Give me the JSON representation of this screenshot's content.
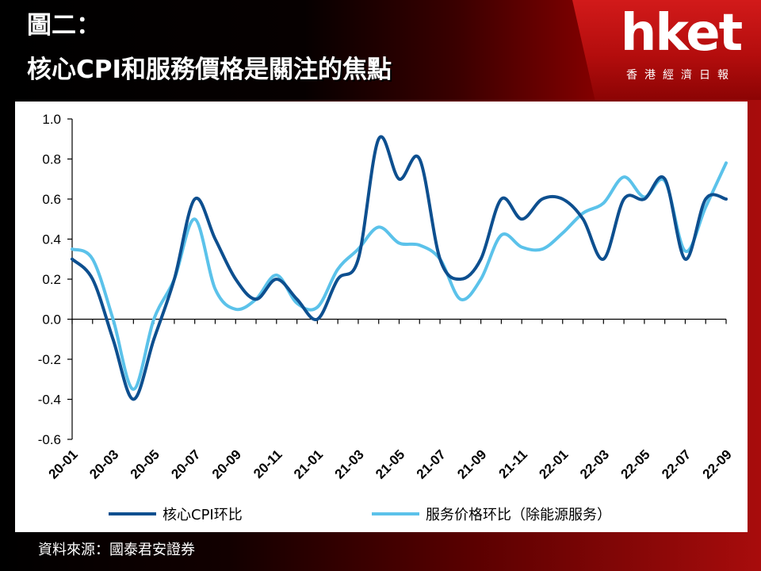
{
  "header": {
    "title_line1": "圖二：",
    "title_line2": "核心CPI和服務價格是關注的焦點",
    "logo": "hket",
    "logo_sub": "香港經濟日報"
  },
  "footer": {
    "source": "資料來源：國泰君安證券"
  },
  "colors": {
    "series1": "#0d4f8f",
    "series2": "#5bc2ea"
  },
  "chart_data": {
    "type": "line",
    "title": "",
    "xlabel": "",
    "ylabel": "",
    "ylim": [
      -0.6,
      1.0
    ],
    "yticks": [
      "1.0",
      "0.8",
      "0.6",
      "0.4",
      "0.2",
      "0.0",
      "-0.2",
      "-0.4",
      "-0.6"
    ],
    "x": [
      "20-01",
      "20-02",
      "20-03",
      "20-04",
      "20-05",
      "20-06",
      "20-07",
      "20-08",
      "20-09",
      "20-10",
      "20-11",
      "20-12",
      "21-01",
      "21-02",
      "21-03",
      "21-04",
      "21-05",
      "21-06",
      "21-07",
      "21-08",
      "21-09",
      "21-10",
      "21-11",
      "21-12",
      "22-01",
      "22-02",
      "22-03",
      "22-04",
      "22-05",
      "22-06",
      "22-07",
      "22-08",
      "22-09"
    ],
    "x_tick_labels": [
      "20-01",
      "20-03",
      "20-05",
      "20-07",
      "20-09",
      "20-11",
      "21-01",
      "21-03",
      "21-05",
      "21-07",
      "21-09",
      "21-11",
      "22-01",
      "22-03",
      "22-05",
      "22-07",
      "22-09"
    ],
    "grid": false,
    "legend_position": "bottom",
    "series": [
      {
        "name": "核心CPI环比",
        "color": "#0d4f8f",
        "values": [
          0.3,
          0.2,
          -0.1,
          -0.4,
          -0.1,
          0.2,
          0.6,
          0.4,
          0.2,
          0.1,
          0.2,
          0.1,
          0.0,
          0.2,
          0.3,
          0.9,
          0.7,
          0.8,
          0.3,
          0.2,
          0.3,
          0.6,
          0.5,
          0.6,
          0.6,
          0.5,
          0.3,
          0.6,
          0.6,
          0.7,
          0.3,
          0.6,
          0.6
        ]
      },
      {
        "name": "服务价格环比（除能源服务）",
        "color": "#5bc2ea",
        "values": [
          0.35,
          0.3,
          0.0,
          -0.35,
          0.0,
          0.2,
          0.5,
          0.15,
          0.05,
          0.1,
          0.22,
          0.08,
          0.06,
          0.25,
          0.35,
          0.46,
          0.38,
          0.37,
          0.3,
          0.1,
          0.2,
          0.42,
          0.36,
          0.35,
          0.43,
          0.53,
          0.58,
          0.71,
          0.61,
          0.69,
          0.34,
          0.56,
          0.78
        ]
      }
    ]
  }
}
